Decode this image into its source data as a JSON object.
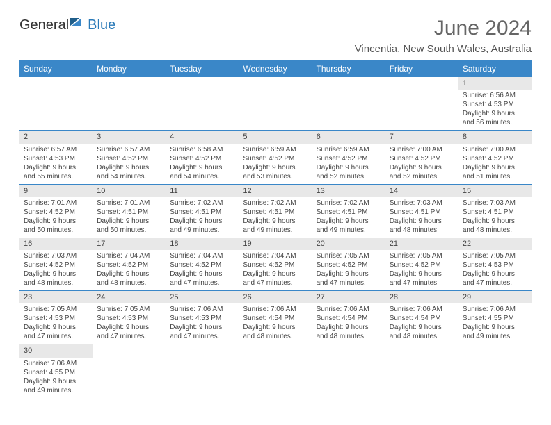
{
  "logo": {
    "general": "General",
    "blue": "Blue"
  },
  "title": "June 2024",
  "location": "Vincentia, New South Wales, Australia",
  "colors": {
    "header_bg": "#3a87c8",
    "header_fg": "#ffffff",
    "daynum_bg": "#e8e8e8",
    "row_divider": "#3a87c8",
    "logo_blue": "#2a7ab8",
    "title_color": "#666666"
  },
  "weekdays": [
    "Sunday",
    "Monday",
    "Tuesday",
    "Wednesday",
    "Thursday",
    "Friday",
    "Saturday"
  ],
  "weeks": [
    [
      null,
      null,
      null,
      null,
      null,
      null,
      {
        "n": "1",
        "sr": "6:56 AM",
        "ss": "4:53 PM",
        "dl": "9 hours and 56 minutes."
      }
    ],
    [
      {
        "n": "2",
        "sr": "6:57 AM",
        "ss": "4:53 PM",
        "dl": "9 hours and 55 minutes."
      },
      {
        "n": "3",
        "sr": "6:57 AM",
        "ss": "4:52 PM",
        "dl": "9 hours and 54 minutes."
      },
      {
        "n": "4",
        "sr": "6:58 AM",
        "ss": "4:52 PM",
        "dl": "9 hours and 54 minutes."
      },
      {
        "n": "5",
        "sr": "6:59 AM",
        "ss": "4:52 PM",
        "dl": "9 hours and 53 minutes."
      },
      {
        "n": "6",
        "sr": "6:59 AM",
        "ss": "4:52 PM",
        "dl": "9 hours and 52 minutes."
      },
      {
        "n": "7",
        "sr": "7:00 AM",
        "ss": "4:52 PM",
        "dl": "9 hours and 52 minutes."
      },
      {
        "n": "8",
        "sr": "7:00 AM",
        "ss": "4:52 PM",
        "dl": "9 hours and 51 minutes."
      }
    ],
    [
      {
        "n": "9",
        "sr": "7:01 AM",
        "ss": "4:52 PM",
        "dl": "9 hours and 50 minutes."
      },
      {
        "n": "10",
        "sr": "7:01 AM",
        "ss": "4:51 PM",
        "dl": "9 hours and 50 minutes."
      },
      {
        "n": "11",
        "sr": "7:02 AM",
        "ss": "4:51 PM",
        "dl": "9 hours and 49 minutes."
      },
      {
        "n": "12",
        "sr": "7:02 AM",
        "ss": "4:51 PM",
        "dl": "9 hours and 49 minutes."
      },
      {
        "n": "13",
        "sr": "7:02 AM",
        "ss": "4:51 PM",
        "dl": "9 hours and 49 minutes."
      },
      {
        "n": "14",
        "sr": "7:03 AM",
        "ss": "4:51 PM",
        "dl": "9 hours and 48 minutes."
      },
      {
        "n": "15",
        "sr": "7:03 AM",
        "ss": "4:51 PM",
        "dl": "9 hours and 48 minutes."
      }
    ],
    [
      {
        "n": "16",
        "sr": "7:03 AM",
        "ss": "4:52 PM",
        "dl": "9 hours and 48 minutes."
      },
      {
        "n": "17",
        "sr": "7:04 AM",
        "ss": "4:52 PM",
        "dl": "9 hours and 48 minutes."
      },
      {
        "n": "18",
        "sr": "7:04 AM",
        "ss": "4:52 PM",
        "dl": "9 hours and 47 minutes."
      },
      {
        "n": "19",
        "sr": "7:04 AM",
        "ss": "4:52 PM",
        "dl": "9 hours and 47 minutes."
      },
      {
        "n": "20",
        "sr": "7:05 AM",
        "ss": "4:52 PM",
        "dl": "9 hours and 47 minutes."
      },
      {
        "n": "21",
        "sr": "7:05 AM",
        "ss": "4:52 PM",
        "dl": "9 hours and 47 minutes."
      },
      {
        "n": "22",
        "sr": "7:05 AM",
        "ss": "4:53 PM",
        "dl": "9 hours and 47 minutes."
      }
    ],
    [
      {
        "n": "23",
        "sr": "7:05 AM",
        "ss": "4:53 PM",
        "dl": "9 hours and 47 minutes."
      },
      {
        "n": "24",
        "sr": "7:05 AM",
        "ss": "4:53 PM",
        "dl": "9 hours and 47 minutes."
      },
      {
        "n": "25",
        "sr": "7:06 AM",
        "ss": "4:53 PM",
        "dl": "9 hours and 47 minutes."
      },
      {
        "n": "26",
        "sr": "7:06 AM",
        "ss": "4:54 PM",
        "dl": "9 hours and 48 minutes."
      },
      {
        "n": "27",
        "sr": "7:06 AM",
        "ss": "4:54 PM",
        "dl": "9 hours and 48 minutes."
      },
      {
        "n": "28",
        "sr": "7:06 AM",
        "ss": "4:54 PM",
        "dl": "9 hours and 48 minutes."
      },
      {
        "n": "29",
        "sr": "7:06 AM",
        "ss": "4:55 PM",
        "dl": "9 hours and 49 minutes."
      }
    ],
    [
      {
        "n": "30",
        "sr": "7:06 AM",
        "ss": "4:55 PM",
        "dl": "9 hours and 49 minutes."
      },
      null,
      null,
      null,
      null,
      null,
      null
    ]
  ],
  "labels": {
    "sunrise": "Sunrise:",
    "sunset": "Sunset:",
    "daylight": "Daylight:"
  }
}
